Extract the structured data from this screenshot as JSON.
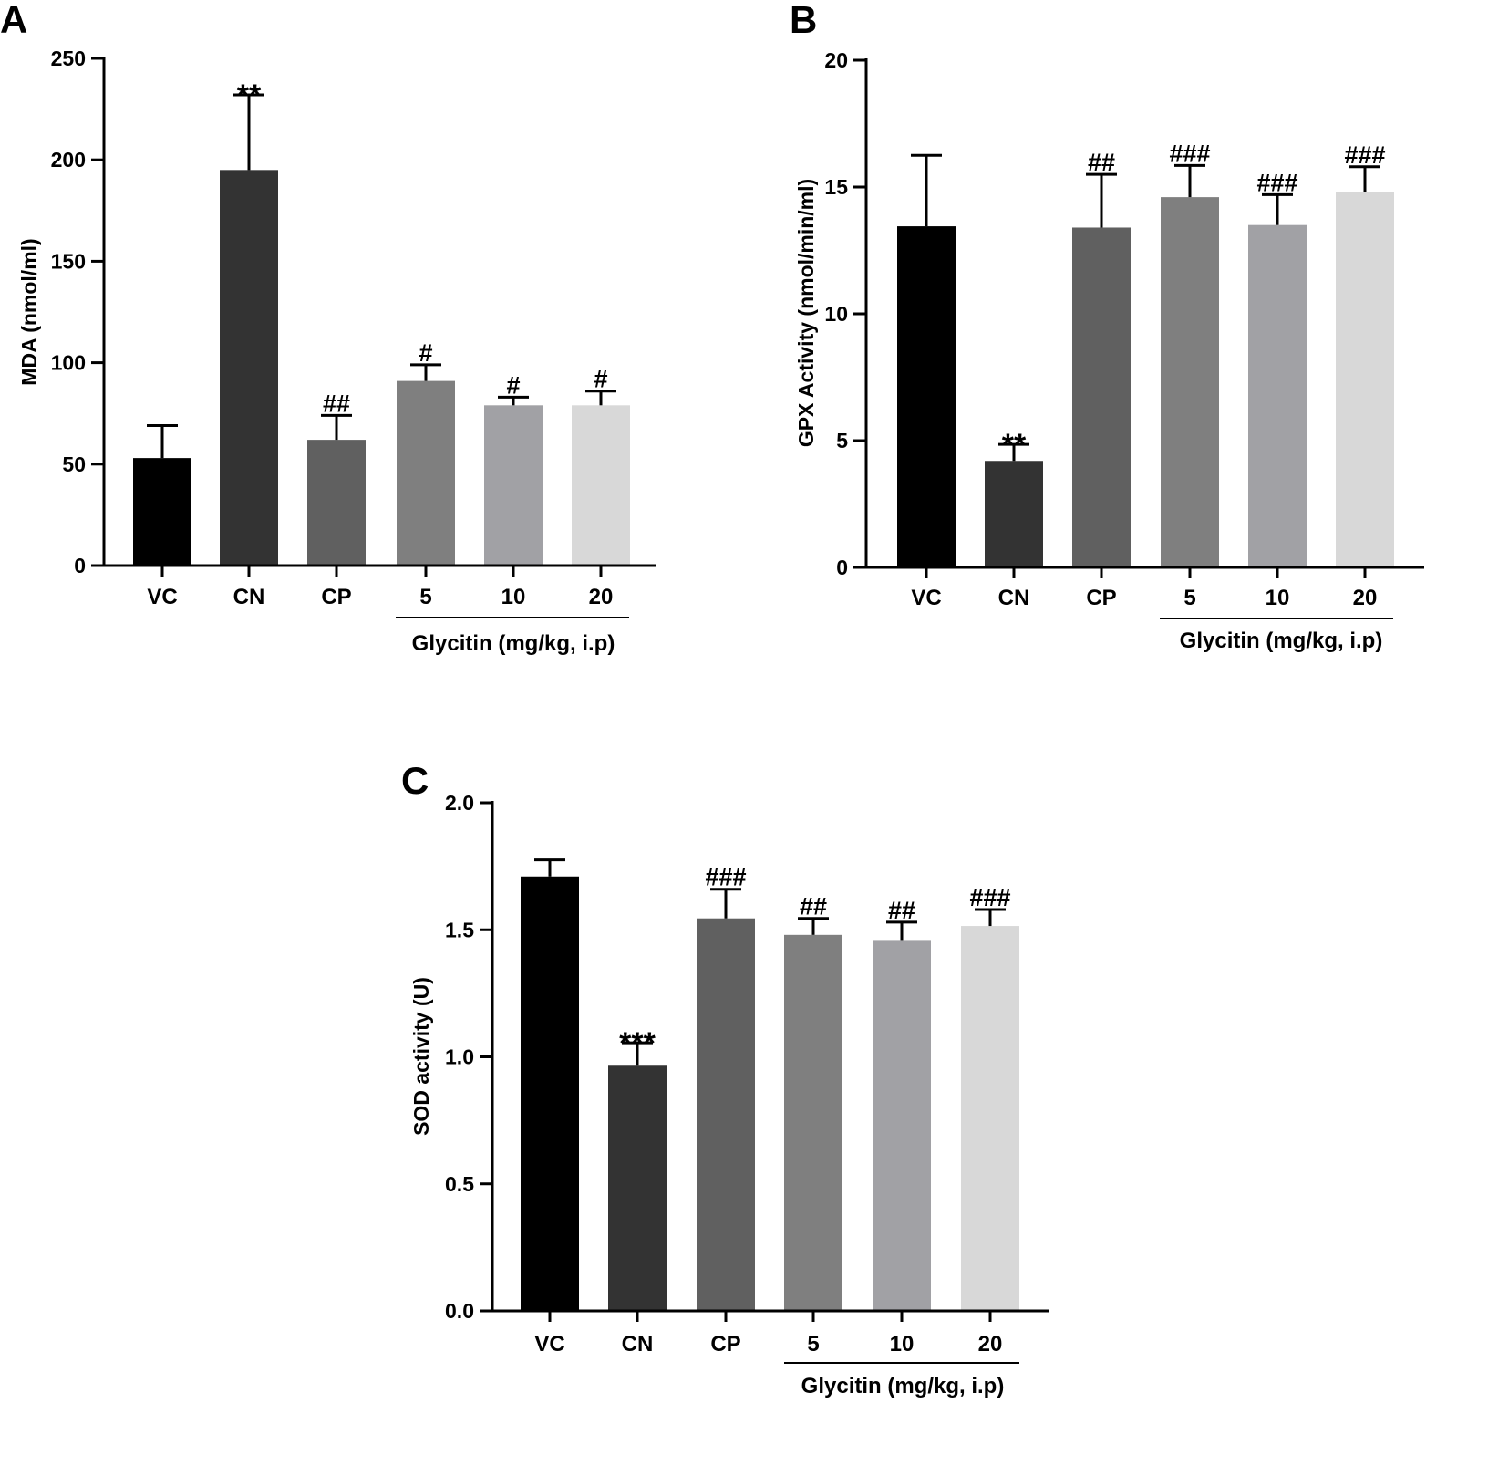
{
  "chart_data": [
    {
      "panel": "A",
      "type": "bar",
      "ylabel": "MDA (nmol/ml)",
      "ylim": [
        0,
        250
      ],
      "yticks": [
        "0",
        "50",
        "100",
        "150",
        "200",
        "250"
      ],
      "categories": [
        "VC",
        "CN",
        "CP",
        "5",
        "10",
        "20"
      ],
      "values": [
        53,
        195,
        62,
        91,
        79,
        79
      ],
      "errors": [
        16,
        37,
        12,
        8,
        4,
        7
      ],
      "colors": [
        "#000000",
        "#333333",
        "#606060",
        "#7f7f7f",
        "#a1a1a5",
        "#d8d8d8"
      ],
      "annotations": [
        "",
        "**",
        "##",
        "#",
        "#",
        "#"
      ],
      "group_label": "Glycitin (mg/kg, i.p)",
      "grid": false
    },
    {
      "panel": "B",
      "type": "bar",
      "ylabel": "GPX Activity (nmol/min/ml)",
      "ylim": [
        0,
        20
      ],
      "yticks": [
        "0",
        "5",
        "10",
        "15",
        "20"
      ],
      "categories": [
        "VC",
        "CN",
        "CP",
        "5",
        "10",
        "20"
      ],
      "values": [
        13.45,
        4.2,
        13.4,
        14.6,
        13.5,
        14.8
      ],
      "errors": [
        2.8,
        0.65,
        2.1,
        1.25,
        1.2,
        1.0
      ],
      "colors": [
        "#000000",
        "#333333",
        "#606060",
        "#7f7f7f",
        "#a1a1a5",
        "#d8d8d8"
      ],
      "annotations": [
        "",
        "**",
        "##",
        "###",
        "###",
        "###"
      ],
      "group_label": "Glycitin (mg/kg, i.p)",
      "grid": false
    },
    {
      "panel": "C",
      "type": "bar",
      "ylabel": "SOD activity (U)",
      "ylim": [
        0,
        2.0
      ],
      "yticks": [
        "0.0",
        "0.5",
        "1.0",
        "1.5",
        "2.0"
      ],
      "categories": [
        "VC",
        "CN",
        "CP",
        "5",
        "10",
        "20"
      ],
      "values": [
        1.71,
        0.965,
        1.545,
        1.48,
        1.46,
        1.515
      ],
      "errors": [
        0.065,
        0.09,
        0.115,
        0.065,
        0.07,
        0.065
      ],
      "colors": [
        "#000000",
        "#333333",
        "#606060",
        "#7f7f7f",
        "#a1a1a5",
        "#d8d8d8"
      ],
      "annotations": [
        "",
        "***",
        "###",
        "##",
        "##",
        "###"
      ],
      "group_label": "Glycitin (mg/kg, i.p)",
      "grid": false
    }
  ]
}
